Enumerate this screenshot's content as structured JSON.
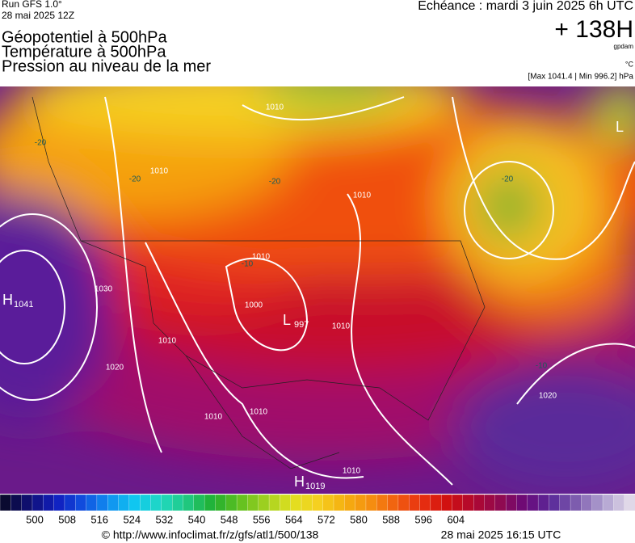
{
  "header": {
    "run": "Run GFS 1.0°",
    "date": "28 mai 2025 12Z",
    "titles": [
      "Géopotentiel à 500hPa",
      "Température à 500hPa",
      "Pression au niveau de la mer"
    ],
    "echeance": "Echéance : mardi 3 juin 2025 6h UTC",
    "lead": "+ 138H",
    "unit_geo": "gpdam",
    "unit_temp": "°C",
    "pressure_range": "[Max 1041.4 | Min 996.2] hPa"
  },
  "map": {
    "centers": [
      {
        "letter": "H",
        "value": "1041"
      },
      {
        "letter": "L",
        "value": "997"
      },
      {
        "letter": "H",
        "value": "1019"
      },
      {
        "letter": "L"
      }
    ],
    "contour_labels": [
      "1010",
      "1010",
      "1010",
      "1010",
      "1010",
      "1010",
      "1010",
      "1010",
      "1010",
      "1020",
      "1020",
      "1030",
      "1000",
      "-20",
      "-20",
      "-20",
      "-20",
      "-10",
      "-10"
    ]
  },
  "colorbar": {
    "labels": [
      500,
      508,
      516,
      524,
      532,
      540,
      548,
      556,
      564,
      572,
      580,
      588,
      596,
      604
    ]
  },
  "footer": {
    "url": "© http://www.infoclimat.fr/z/gfs/atl1/500/138",
    "generated": "28 mai 2025 16:15 UTC"
  }
}
